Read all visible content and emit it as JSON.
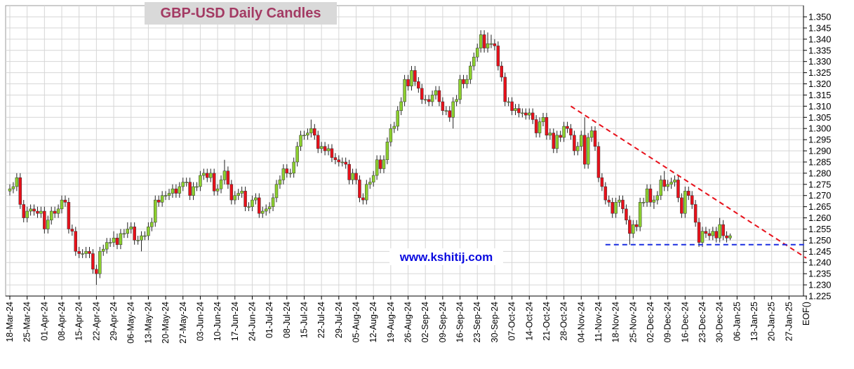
{
  "chart_data": {
    "type": "candlestick",
    "title": "GBP-USD Daily Candles",
    "watermark": "www.kshitij.com",
    "categories": [
      "18-Mar-24",
      "25-Mar-24",
      "01-Apr-24",
      "08-Apr-24",
      "15-Apr-24",
      "22-Apr-24",
      "29-Apr-24",
      "06-May-24",
      "13-May-24",
      "20-May-24",
      "27-May-24",
      "03-Jun-24",
      "10-Jun-24",
      "17-Jun-24",
      "24-Jun-24",
      "01-Jul-24",
      "08-Jul-24",
      "15-Jul-24",
      "22-Jul-24",
      "29-Jul-24",
      "05-Aug-24",
      "12-Aug-24",
      "19-Aug-24",
      "26-Aug-24",
      "02-Sep-24",
      "09-Sep-24",
      "16-Sep-24",
      "23-Sep-24",
      "30-Sep-24",
      "07-Oct-24",
      "14-Oct-24",
      "21-Oct-24",
      "28-Oct-24",
      "04-Nov-24",
      "11-Nov-24",
      "18-Nov-24",
      "25-Nov-24",
      "02-Dec-24",
      "09-Dec-24",
      "16-Dec-24",
      "23-Dec-24",
      "30-Dec-24",
      "06-Jan-25",
      "13-Jan-25",
      "20-Jan-25",
      "27-Jan-25",
      "EOF()"
    ],
    "up_color": "#8ccf2e",
    "down_color": "#e8101a",
    "open": [
      1.272,
      1.273,
      1.274,
      1.278,
      1.266,
      1.26,
      1.263,
      1.264,
      1.263,
      1.262,
      1.263,
      1.255,
      1.259,
      1.263,
      1.262,
      1.264,
      1.268,
      1.267,
      1.255,
      1.254,
      1.245,
      1.244,
      1.244,
      1.245,
      1.244,
      1.237,
      1.235,
      1.245,
      1.246,
      1.249,
      1.249,
      1.251,
      1.248,
      1.253,
      1.253,
      1.255,
      1.256,
      1.25,
      1.25,
      1.252,
      1.252,
      1.256,
      1.258,
      1.268,
      1.267,
      1.27,
      1.27,
      1.271,
      1.273,
      1.271,
      1.274,
      1.276,
      1.276,
      1.27,
      1.274,
      1.274,
      1.279,
      1.28,
      1.278,
      1.28,
      1.272,
      1.273,
      1.277,
      1.281,
      1.275,
      1.268,
      1.27,
      1.271,
      1.272,
      1.265,
      1.265,
      1.268,
      1.269,
      1.262,
      1.263,
      1.264,
      1.265,
      1.269,
      1.275,
      1.277,
      1.282,
      1.28,
      1.28,
      1.285,
      1.292,
      1.297,
      1.297,
      1.298,
      1.3,
      1.297,
      1.291,
      1.292,
      1.29,
      1.291,
      1.287,
      1.286,
      1.285,
      1.285,
      1.284,
      1.277,
      1.28,
      1.277,
      1.269,
      1.268,
      1.275,
      1.276,
      1.279,
      1.286,
      1.282,
      1.286,
      1.294,
      1.3,
      1.301,
      1.308,
      1.312,
      1.322,
      1.319,
      1.326,
      1.321,
      1.318,
      1.313,
      1.313,
      1.312,
      1.315,
      1.317,
      1.312,
      1.308,
      1.308,
      1.305,
      1.312,
      1.313,
      1.322,
      1.32,
      1.322,
      1.328,
      1.332,
      1.336,
      1.342,
      1.336,
      1.338,
      1.338,
      1.337,
      1.328,
      1.323,
      1.312,
      1.312,
      1.308,
      1.309,
      1.307,
      1.307,
      1.306,
      1.307,
      1.304,
      1.298,
      1.303,
      1.305,
      1.297,
      1.298,
      1.291,
      1.297,
      1.296,
      1.301,
      1.3,
      1.297,
      1.29,
      1.292,
      1.297,
      1.284,
      1.296,
      1.299,
      1.292,
      1.278,
      1.274,
      1.268,
      1.267,
      1.262,
      1.267,
      1.268,
      1.264,
      1.259,
      1.253,
      1.257,
      1.256,
      1.267,
      1.267,
      1.273,
      1.267,
      1.268,
      1.27,
      1.277,
      1.274,
      1.275,
      1.276,
      1.277,
      1.269,
      1.262,
      1.272,
      1.27,
      1.266,
      1.258,
      1.249,
      1.254,
      1.253,
      1.252,
      1.254,
      1.251,
      1.257,
      1.252,
      1.251
    ],
    "high": [
      1.275,
      1.276,
      1.28,
      1.28,
      1.268,
      1.265,
      1.266,
      1.266,
      1.265,
      1.265,
      1.265,
      1.261,
      1.265,
      1.265,
      1.266,
      1.27,
      1.27,
      1.269,
      1.257,
      1.256,
      1.247,
      1.246,
      1.247,
      1.247,
      1.246,
      1.239,
      1.247,
      1.248,
      1.251,
      1.251,
      1.254,
      1.253,
      1.255,
      1.255,
      1.258,
      1.258,
      1.258,
      1.252,
      1.254,
      1.254,
      1.258,
      1.26,
      1.27,
      1.27,
      1.272,
      1.272,
      1.273,
      1.275,
      1.275,
      1.276,
      1.278,
      1.278,
      1.278,
      1.276,
      1.276,
      1.281,
      1.282,
      1.282,
      1.282,
      1.282,
      1.275,
      1.279,
      1.286,
      1.283,
      1.277,
      1.272,
      1.273,
      1.274,
      1.274,
      1.267,
      1.27,
      1.271,
      1.271,
      1.265,
      1.266,
      1.267,
      1.271,
      1.277,
      1.279,
      1.284,
      1.284,
      1.282,
      1.287,
      1.294,
      1.299,
      1.299,
      1.3,
      1.304,
      1.302,
      1.299,
      1.294,
      1.294,
      1.293,
      1.293,
      1.289,
      1.288,
      1.287,
      1.287,
      1.286,
      1.282,
      1.282,
      1.279,
      1.271,
      1.277,
      1.278,
      1.281,
      1.288,
      1.288,
      1.288,
      1.296,
      1.302,
      1.303,
      1.31,
      1.314,
      1.324,
      1.324,
      1.328,
      1.328,
      1.323,
      1.32,
      1.315,
      1.315,
      1.317,
      1.319,
      1.319,
      1.314,
      1.31,
      1.31,
      1.314,
      1.315,
      1.324,
      1.324,
      1.324,
      1.33,
      1.334,
      1.338,
      1.344,
      1.344,
      1.343,
      1.342,
      1.34,
      1.339,
      1.33,
      1.325,
      1.314,
      1.314,
      1.311,
      1.311,
      1.309,
      1.309,
      1.309,
      1.309,
      1.306,
      1.305,
      1.307,
      1.307,
      1.3,
      1.3,
      1.299,
      1.299,
      1.303,
      1.303,
      1.302,
      1.299,
      1.294,
      1.299,
      1.305,
      1.298,
      1.301,
      1.301,
      1.294,
      1.28,
      1.276,
      1.27,
      1.269,
      1.269,
      1.27,
      1.27,
      1.266,
      1.261,
      1.259,
      1.259,
      1.269,
      1.269,
      1.275,
      1.275,
      1.27,
      1.272,
      1.279,
      1.281,
      1.277,
      1.278,
      1.279,
      1.279,
      1.271,
      1.274,
      1.274,
      1.272,
      1.268,
      1.26,
      1.256,
      1.256,
      1.255,
      1.256,
      1.256,
      1.26,
      1.259,
      1.254,
      1.253
    ],
    "low": [
      1.27,
      1.271,
      1.272,
      1.264,
      1.258,
      1.258,
      1.261,
      1.261,
      1.26,
      1.26,
      1.253,
      1.253,
      1.257,
      1.26,
      1.26,
      1.262,
      1.265,
      1.253,
      1.252,
      1.243,
      1.242,
      1.242,
      1.242,
      1.242,
      1.235,
      1.23,
      1.233,
      1.243,
      1.244,
      1.247,
      1.247,
      1.246,
      1.246,
      1.251,
      1.251,
      1.253,
      1.248,
      1.248,
      1.245,
      1.25,
      1.25,
      1.254,
      1.256,
      1.265,
      1.265,
      1.268,
      1.268,
      1.269,
      1.269,
      1.269,
      1.272,
      1.274,
      1.268,
      1.268,
      1.272,
      1.272,
      1.277,
      1.276,
      1.276,
      1.27,
      1.27,
      1.271,
      1.275,
      1.273,
      1.266,
      1.266,
      1.268,
      1.269,
      1.263,
      1.263,
      1.263,
      1.266,
      1.26,
      1.26,
      1.261,
      1.262,
      1.263,
      1.267,
      1.273,
      1.275,
      1.278,
      1.278,
      1.278,
      1.283,
      1.29,
      1.295,
      1.295,
      1.296,
      1.295,
      1.289,
      1.289,
      1.288,
      1.288,
      1.285,
      1.284,
      1.283,
      1.283,
      1.282,
      1.275,
      1.275,
      1.275,
      1.267,
      1.266,
      1.266,
      1.273,
      1.274,
      1.277,
      1.28,
      1.28,
      1.284,
      1.292,
      1.298,
      1.299,
      1.306,
      1.31,
      1.317,
      1.317,
      1.319,
      1.316,
      1.311,
      1.311,
      1.31,
      1.31,
      1.313,
      1.31,
      1.306,
      1.306,
      1.303,
      1.3,
      1.31,
      1.311,
      1.318,
      1.318,
      1.32,
      1.326,
      1.33,
      1.334,
      1.334,
      1.334,
      1.336,
      1.335,
      1.326,
      1.321,
      1.31,
      1.31,
      1.306,
      1.306,
      1.305,
      1.305,
      1.304,
      1.304,
      1.302,
      1.296,
      1.296,
      1.301,
      1.295,
      1.295,
      1.289,
      1.289,
      1.294,
      1.294,
      1.298,
      1.295,
      1.288,
      1.288,
      1.29,
      1.282,
      1.282,
      1.294,
      1.29,
      1.276,
      1.272,
      1.266,
      1.265,
      1.26,
      1.26,
      1.265,
      1.262,
      1.257,
      1.248,
      1.251,
      1.254,
      1.254,
      1.265,
      1.265,
      1.265,
      1.264,
      1.266,
      1.268,
      1.272,
      1.272,
      1.273,
      1.274,
      1.267,
      1.26,
      1.26,
      1.268,
      1.264,
      1.256,
      1.247,
      1.247,
      1.251,
      1.25,
      1.25,
      1.249,
      1.249,
      1.25,
      1.249,
      1.25
    ],
    "close": [
      1.273,
      1.274,
      1.278,
      1.266,
      1.26,
      1.263,
      1.264,
      1.263,
      1.262,
      1.263,
      1.255,
      1.259,
      1.263,
      1.262,
      1.264,
      1.268,
      1.267,
      1.255,
      1.254,
      1.245,
      1.244,
      1.244,
      1.245,
      1.244,
      1.237,
      1.235,
      1.245,
      1.246,
      1.249,
      1.249,
      1.251,
      1.248,
      1.253,
      1.253,
      1.255,
      1.256,
      1.25,
      1.25,
      1.252,
      1.252,
      1.256,
      1.258,
      1.268,
      1.267,
      1.27,
      1.27,
      1.271,
      1.273,
      1.271,
      1.274,
      1.276,
      1.276,
      1.27,
      1.274,
      1.274,
      1.279,
      1.28,
      1.278,
      1.28,
      1.272,
      1.273,
      1.277,
      1.281,
      1.275,
      1.268,
      1.27,
      1.271,
      1.272,
      1.265,
      1.265,
      1.268,
      1.269,
      1.262,
      1.263,
      1.264,
      1.265,
      1.269,
      1.275,
      1.277,
      1.282,
      1.28,
      1.28,
      1.285,
      1.292,
      1.297,
      1.297,
      1.298,
      1.3,
      1.297,
      1.291,
      1.292,
      1.29,
      1.291,
      1.287,
      1.286,
      1.285,
      1.285,
      1.284,
      1.277,
      1.28,
      1.277,
      1.269,
      1.268,
      1.275,
      1.276,
      1.279,
      1.286,
      1.282,
      1.286,
      1.294,
      1.3,
      1.301,
      1.308,
      1.312,
      1.322,
      1.319,
      1.326,
      1.321,
      1.318,
      1.313,
      1.313,
      1.312,
      1.315,
      1.317,
      1.312,
      1.308,
      1.308,
      1.305,
      1.312,
      1.313,
      1.322,
      1.32,
      1.322,
      1.328,
      1.332,
      1.336,
      1.342,
      1.336,
      1.338,
      1.338,
      1.337,
      1.328,
      1.323,
      1.312,
      1.312,
      1.308,
      1.309,
      1.307,
      1.307,
      1.306,
      1.307,
      1.304,
      1.298,
      1.303,
      1.305,
      1.297,
      1.298,
      1.291,
      1.297,
      1.296,
      1.301,
      1.3,
      1.297,
      1.29,
      1.292,
      1.297,
      1.284,
      1.296,
      1.299,
      1.292,
      1.278,
      1.274,
      1.268,
      1.267,
      1.262,
      1.267,
      1.268,
      1.264,
      1.259,
      1.253,
      1.257,
      1.256,
      1.267,
      1.267,
      1.273,
      1.267,
      1.268,
      1.27,
      1.277,
      1.274,
      1.275,
      1.276,
      1.277,
      1.269,
      1.262,
      1.272,
      1.27,
      1.266,
      1.258,
      1.249,
      1.254,
      1.253,
      1.252,
      1.254,
      1.251,
      1.257,
      1.252,
      1.251,
      1.252
    ],
    "trend_lines": [
      {
        "color": "#e8101a",
        "x": [
          162,
          230
        ],
        "y": [
          1.31,
          1.242
        ]
      },
      {
        "color": "#1a2ee0",
        "x": [
          172,
          230
        ],
        "y": [
          1.248,
          1.248
        ]
      }
    ],
    "ylim": [
      1.225,
      1.35
    ],
    "yticks": [
      1.225,
      {
        "value": 1.23,
        "label": "1.230"
      },
      1.235,
      {
        "value": 1.24,
        "label": "1.240"
      },
      1.245,
      {
        "value": 1.25,
        "label": "1.250"
      },
      1.255,
      {
        "value": 1.26,
        "label": "1.260"
      },
      1.265,
      {
        "value": 1.27,
        "label": "1.270"
      },
      1.275,
      {
        "value": 1.28,
        "label": "1.280"
      },
      1.285,
      {
        "value": 1.29,
        "label": "1.290"
      },
      1.295,
      {
        "value": 1.3,
        "label": "1.300"
      },
      1.305,
      {
        "value": 1.31,
        "label": "1.310"
      },
      1.315,
      {
        "value": 1.32,
        "label": "1.320"
      },
      1.325,
      {
        "value": 1.33,
        "label": "1.330"
      },
      1.335,
      {
        "value": 1.34,
        "label": "1.340"
      },
      1.345,
      {
        "value": 1.35,
        "label": "1.350"
      }
    ],
    "grid": true
  }
}
